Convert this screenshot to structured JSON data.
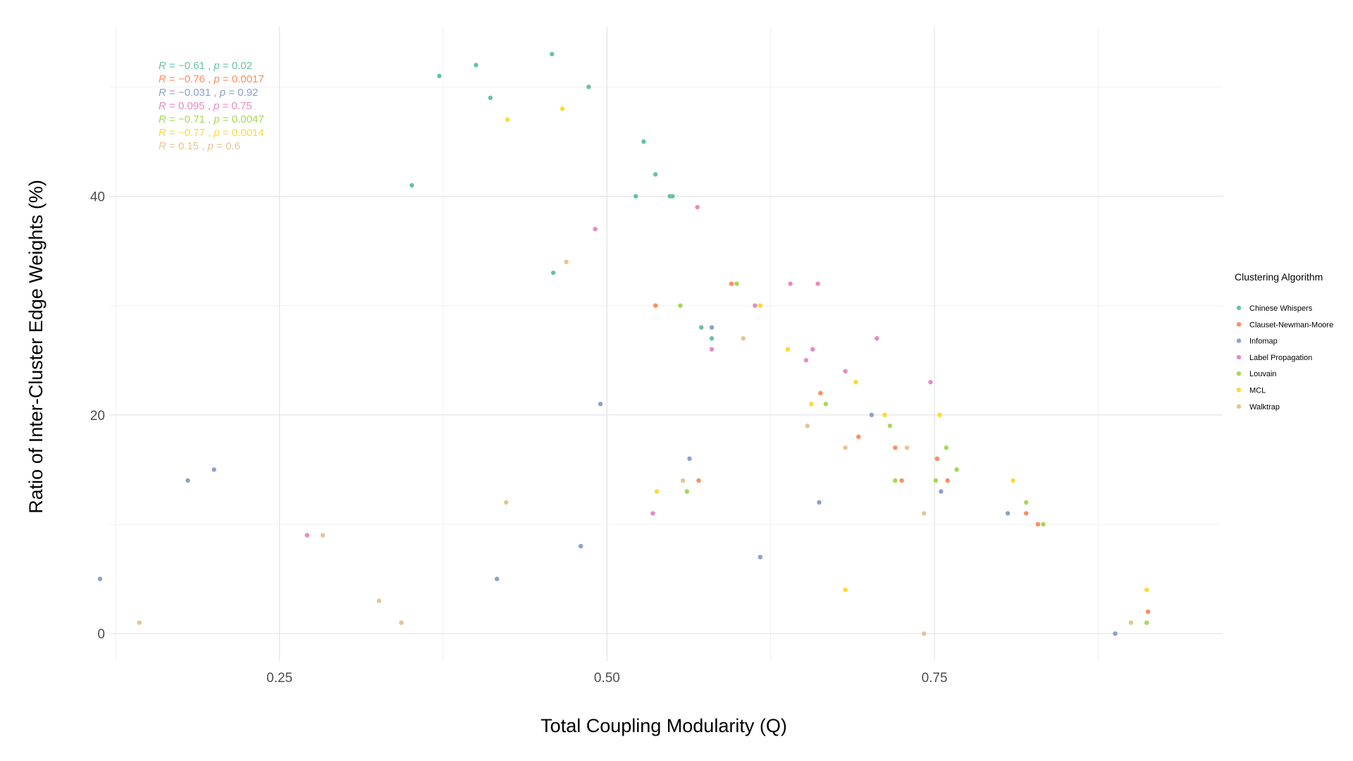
{
  "chart_data": {
    "type": "scatter",
    "xlabel": "Total Coupling Modularity (Q)",
    "ylabel": "Ratio of Inter-Cluster Edge Weights (%)",
    "xlim": [
      0.12,
      0.97
    ],
    "ylim": [
      -2.5,
      55.5
    ],
    "x_ticks": [
      0.25,
      0.5,
      0.75
    ],
    "x_tick_labels": [
      "0.25",
      "0.50",
      "0.75"
    ],
    "y_ticks": [
      0,
      20,
      40
    ],
    "y_tick_labels": [
      "0",
      "20",
      "40"
    ],
    "grid": true,
    "legend_title": "Clustering Algorithm",
    "legend_position": "right",
    "series": [
      {
        "name": "Chinese Whispers",
        "color": "#66c2a5",
        "stat": {
          "r_label": "R",
          "r_value": "= −0.61",
          "p_label": "p",
          "p_value": "= 0.02"
        },
        "points": [
          [
            0.458,
            53
          ],
          [
            0.372,
            51
          ],
          [
            0.4,
            52
          ],
          [
            0.411,
            49
          ],
          [
            0.486,
            50
          ],
          [
            0.351,
            41
          ],
          [
            0.528,
            45
          ],
          [
            0.537,
            42
          ],
          [
            0.522,
            40
          ],
          [
            0.55,
            40
          ],
          [
            0.548,
            40
          ],
          [
            0.459,
            33
          ],
          [
            0.572,
            28
          ],
          [
            0.58,
            27
          ]
        ]
      },
      {
        "name": "Clauset-Newman-Moore",
        "color": "#fc8d62",
        "stat": {
          "r_label": "R",
          "r_value": "= −0.76",
          "p_label": "p",
          "p_value": "= 0.0017"
        },
        "points": [
          [
            0.537,
            30
          ],
          [
            0.595,
            32
          ],
          [
            0.663,
            22
          ],
          [
            0.692,
            18
          ],
          [
            0.72,
            17
          ],
          [
            0.725,
            14
          ],
          [
            0.752,
            16
          ],
          [
            0.76,
            14
          ],
          [
            0.57,
            14
          ],
          [
            0.82,
            11
          ],
          [
            0.829,
            10
          ],
          [
            0.913,
            2
          ]
        ]
      },
      {
        "name": "Infomap",
        "color": "#8da0cb",
        "stat": {
          "r_label": "R",
          "r_value": "= −0.031",
          "p_label": "p",
          "p_value": "= 0.92"
        },
        "points": [
          [
            0.18,
            14
          ],
          [
            0.2,
            15
          ],
          [
            0.113,
            5
          ],
          [
            0.416,
            5
          ],
          [
            0.48,
            8
          ],
          [
            0.495,
            21
          ],
          [
            0.563,
            16
          ],
          [
            0.58,
            28
          ],
          [
            0.617,
            7
          ],
          [
            0.662,
            12
          ],
          [
            0.702,
            20
          ],
          [
            0.755,
            13
          ],
          [
            0.806,
            11
          ],
          [
            0.888,
            0
          ]
        ]
      },
      {
        "name": "Label Propagation",
        "color": "#e78ac3",
        "stat": {
          "r_label": "R",
          "r_value": "= 0.095",
          "p_label": "p",
          "p_value": "= 0.75"
        },
        "points": [
          [
            0.491,
            37
          ],
          [
            0.569,
            39
          ],
          [
            0.58,
            26
          ],
          [
            0.613,
            30
          ],
          [
            0.64,
            32
          ],
          [
            0.661,
            32
          ],
          [
            0.652,
            25
          ],
          [
            0.657,
            26
          ],
          [
            0.682,
            24
          ],
          [
            0.706,
            27
          ],
          [
            0.747,
            23
          ],
          [
            0.271,
            9
          ],
          [
            0.535,
            11
          ]
        ]
      },
      {
        "name": "Louvain",
        "color": "#a6d854",
        "stat": {
          "r_label": "R",
          "r_value": "= −0.71",
          "p_label": "p",
          "p_value": "= 0.0047"
        },
        "points": [
          [
            0.599,
            32
          ],
          [
            0.556,
            30
          ],
          [
            0.667,
            21
          ],
          [
            0.716,
            19
          ],
          [
            0.759,
            17
          ],
          [
            0.767,
            15
          ],
          [
            0.72,
            14
          ],
          [
            0.751,
            14
          ],
          [
            0.561,
            13
          ],
          [
            0.82,
            12
          ],
          [
            0.833,
            10
          ],
          [
            0.912,
            1
          ]
        ]
      },
      {
        "name": "MCL",
        "color": "#ffd92f",
        "stat": {
          "r_label": "R",
          "r_value": "= −0.77",
          "p_label": "p",
          "p_value": "= 0.0014"
        },
        "points": [
          [
            0.466,
            48
          ],
          [
            0.424,
            47
          ],
          [
            0.617,
            30
          ],
          [
            0.638,
            26
          ],
          [
            0.69,
            23
          ],
          [
            0.656,
            21
          ],
          [
            0.712,
            20
          ],
          [
            0.754,
            20
          ],
          [
            0.538,
            13
          ],
          [
            0.81,
            14
          ],
          [
            0.682,
            4
          ],
          [
            0.912,
            4
          ]
        ]
      },
      {
        "name": "Walktrap",
        "color": "#e5c494",
        "stat": {
          "r_label": "R",
          "r_value": "= 0.15",
          "p_label": "p",
          "p_value": "= 0.6"
        },
        "points": [
          [
            0.469,
            34
          ],
          [
            0.604,
            27
          ],
          [
            0.653,
            19
          ],
          [
            0.682,
            17
          ],
          [
            0.729,
            17
          ],
          [
            0.558,
            14
          ],
          [
            0.423,
            12
          ],
          [
            0.283,
            9
          ],
          [
            0.326,
            3
          ],
          [
            0.143,
            1
          ],
          [
            0.343,
            1
          ],
          [
            0.742,
            11
          ],
          [
            0.742,
            0
          ],
          [
            0.9,
            1
          ]
        ]
      }
    ]
  }
}
